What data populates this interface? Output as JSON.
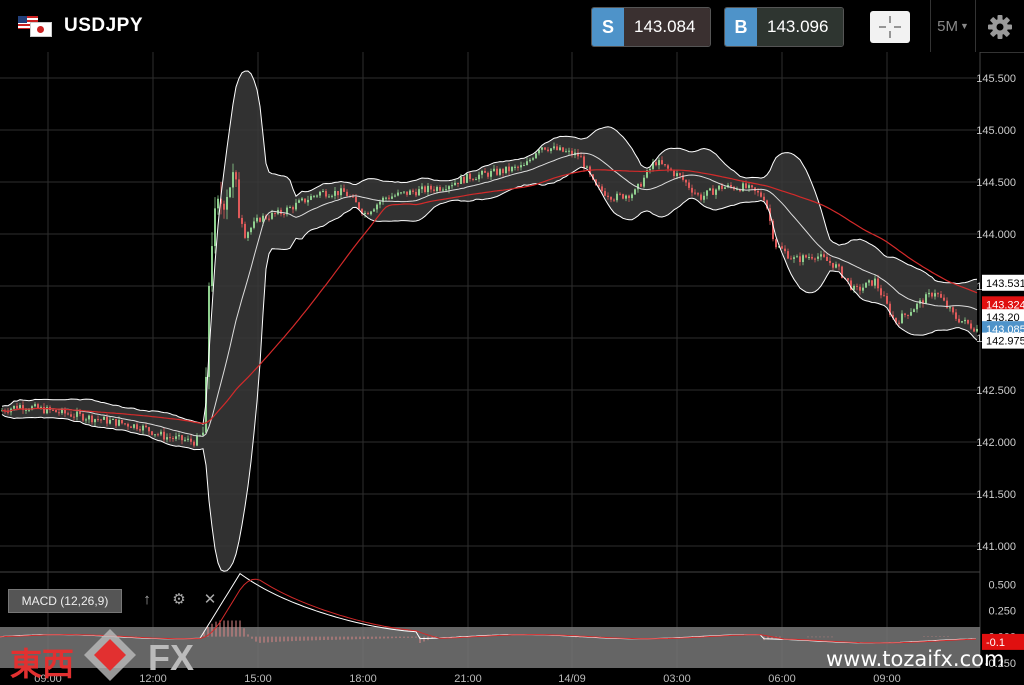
{
  "header": {
    "symbol": "USDJPY",
    "sell_tag": "S",
    "sell_price": "143.084",
    "buy_tag": "B",
    "buy_price": "143.096",
    "timeframe": "5M"
  },
  "indicator": {
    "label": "MACD (12,26,9)"
  },
  "watermark": {
    "brand_text": "東西",
    "brand_fx": "FX",
    "site": "www.tozaifx.com"
  },
  "colors": {
    "sell_bg": "#3a3030",
    "buy_bg": "#2e3530",
    "tag_blue": "#4e93c9",
    "ma_red": "#d42a2a",
    "band_white": "#ffffff"
  },
  "chart_data": {
    "type": "candlestick",
    "price_ticks": [
      "145.500",
      "145.000",
      "144.500",
      "144.000",
      "143.500",
      "143.000",
      "142.500",
      "142.000",
      "141.500",
      "141.000"
    ],
    "price_ylim": [
      140.75,
      145.75
    ],
    "time_ticks": [
      "09:00",
      "12:00",
      "15:00",
      "18:00",
      "21:00",
      "14/09",
      "03:00",
      "06:00",
      "09:00"
    ],
    "price_badges": [
      {
        "label": "143.531",
        "value": 143.531,
        "bg": "#ffffff",
        "fg": "#000000"
      },
      {
        "label": "143.324",
        "value": 143.324,
        "bg": "#e01010",
        "fg": "#ffffff"
      },
      {
        "label": "143.20",
        "value": 143.2,
        "bg": "#ffffff",
        "fg": "#000000"
      },
      {
        "label": "143.085",
        "value": 143.085,
        "bg": "#4e93c9",
        "fg": "#ffffff"
      },
      {
        "label": "142.975",
        "value": 142.975,
        "bg": "#ffffff",
        "fg": "#000000"
      }
    ],
    "macd_ticks": [
      "0.500",
      "0.250",
      "0.000",
      "-0.250"
    ],
    "macd_ylim": [
      -0.3,
      0.6
    ],
    "macd_badge": "-0.1"
  }
}
